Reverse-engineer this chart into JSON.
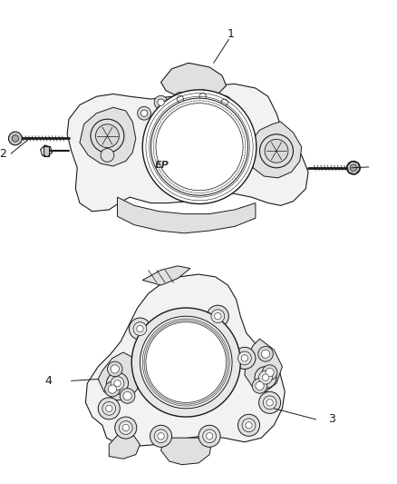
{
  "background_color": "#ffffff",
  "label_1": "1",
  "label_2": "2",
  "label_3": "3",
  "label_4": "4",
  "label_ep": "EP",
  "line_color": "#1a1a1a",
  "fill_light": "#f2f2f2",
  "fill_mid": "#e0e0e0",
  "fill_dark": "#c8c8c8",
  "fig_width": 4.38,
  "fig_height": 5.33,
  "dpi": 100
}
